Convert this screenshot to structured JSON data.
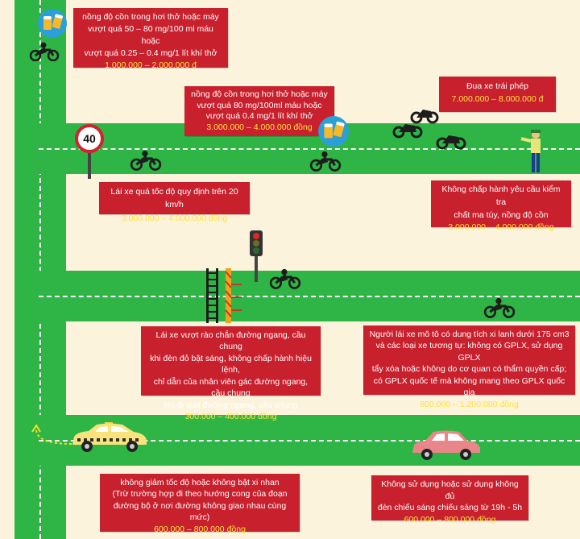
{
  "speed_sign": {
    "value": "40"
  },
  "violations": [
    {
      "text": [
        "nồng độ cồn trong hơi thở hoặc máy",
        "vượt quá 50 – 80 mg/100 ml máu hoặc",
        "vượt quá 0.25 – 0.4 mg/1 lít khí thở"
      ],
      "fine": "1.000.000 – 2.000.000 đ"
    },
    {
      "text": [
        "nồng độ cồn trong hơi thở hoặc máy",
        "vượt quá 80 mg/100ml máu hoặc",
        "vượt quá 0.4 mg/1 lít khí thở"
      ],
      "fine": "3.000.000 – 4.000.000 đồng"
    },
    {
      "text": [
        "Đua xe trái phép"
      ],
      "fine": "7.000.000 – 8.000.000 đ"
    },
    {
      "text": [
        "Lái xe quá tốc độ quy định trên 20 km/h"
      ],
      "fine": "3.000.000 – 4.000.000 đồng"
    },
    {
      "text": [
        "Không chấp hành yêu cầu kiểm tra",
        "chất ma túy, nồng độ cồn"
      ],
      "fine": "3.000.000 – 4.000.000 đồng"
    },
    {
      "text": [
        "Lái xe vượt rào chắn đường ngang, cầu chung",
        "khi đèn đỏ bật sáng, không chấp hành hiệu lệnh,",
        "chỉ dẫn của nhân viên gác đường ngang, cầu chung",
        "khi đi qua đường ngang, cầu chung"
      ],
      "fine": "300.000 – 400.000 đồng"
    },
    {
      "text": [
        "Người lái xe mô tô có dung tích xi lanh dưới 175 cm3",
        "và các loại xe tương tự: không có GPLX, sử dụng GPLX",
        "tẩy xóa hoặc không do cơ quan có thẩm quyền cấp;",
        "có GPLX quốc tế mà không mang theo GPLX quốc gia"
      ],
      "fine": "800.000 – 1.200.000 đồng"
    },
    {
      "text": [
        "không giảm tốc độ hoặc không bật xi nhan",
        "(Trừ trường hợp đi theo hướng cong của đoạn",
        "đường bộ ở nơi đường không giao nhau cùng mức)"
      ],
      "fine": "600.000 – 800.000 đồng"
    },
    {
      "text": [
        "Không sử dụng hoặc sử dụng không đủ",
        "đèn chiếu sáng chiếu sáng từ 19h - 5h"
      ],
      "fine": "600.000 – 800.000 đồng"
    }
  ],
  "colors": {
    "road": "#2fb545",
    "background": "#fbf3dc",
    "box": "#c8202d",
    "fine": "#ffe23d"
  }
}
